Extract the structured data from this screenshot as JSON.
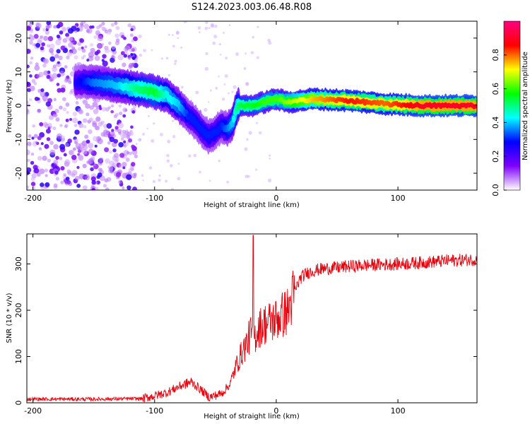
{
  "title": "S124.2023.003.06.48.R08",
  "chart_data": [
    {
      "type": "heatmap",
      "title": "S124.2023.003.06.48.R08",
      "xlabel": "Height of straight line (km)",
      "ylabel": "Frequency (Hz)",
      "xlim": [
        -205,
        165
      ],
      "ylim": [
        -25,
        25
      ],
      "x_ticks": [
        "-200",
        "-100",
        "0",
        "100"
      ],
      "y_ticks": [
        "-20",
        "-10",
        "0",
        "10",
        "20"
      ],
      "colorbar": {
        "label": "Normalized spectral amplitude",
        "range": [
          0,
          1
        ],
        "ticks": [
          "0.0",
          "0.2",
          "0.4",
          "0.6",
          "0.8"
        ],
        "colors": [
          "#ffffff",
          "#7f00ff",
          "#0000ff",
          "#00ffff",
          "#00ff00",
          "#ffff00",
          "#ff0000",
          "#ff0080"
        ]
      },
      "ridge": {
        "x": [
          -165,
          -150,
          -130,
          -115,
          -100,
          -90,
          -80,
          -72,
          -64,
          -56,
          -50,
          -45,
          -40,
          -36,
          -32,
          -28,
          -20,
          -10,
          0,
          10,
          30,
          60,
          90,
          120,
          165
        ],
        "y": [
          7,
          7,
          6,
          5,
          4,
          3,
          0,
          -3,
          -6,
          -9,
          -8,
          -6,
          -7,
          -5,
          0,
          0,
          0,
          1,
          2,
          1,
          2,
          1.5,
          0.5,
          0,
          0
        ],
        "amplitude": [
          0.25,
          0.35,
          0.4,
          0.5,
          0.55,
          0.45,
          0.4,
          0.3,
          0.3,
          0.3,
          0.3,
          0.3,
          0.35,
          0.4,
          0.5,
          0.55,
          0.55,
          0.6,
          0.6,
          0.65,
          0.75,
          0.85,
          0.8,
          0.9,
          0.9
        ]
      },
      "noise_region_x": [
        -205,
        -115
      ]
    },
    {
      "type": "line",
      "xlabel": "Height of straight line (km)",
      "ylabel": "SNR (10 * v/v)",
      "xlim": [
        -205,
        165
      ],
      "ylim": [
        0,
        365
      ],
      "x_ticks": [
        "-200",
        "-100",
        "0",
        "100"
      ],
      "y_ticks": [
        "0",
        "100",
        "200",
        "300"
      ],
      "series": [
        {
          "color": "#e8000b",
          "x": [
            -205,
            -150,
            -110,
            -100,
            -90,
            -80,
            -70,
            -65,
            -55,
            -45,
            -38,
            -33,
            -28,
            -24,
            -21,
            -18,
            -15,
            -10,
            -5,
            0,
            5,
            10,
            15,
            20,
            25,
            30,
            35,
            40,
            50,
            60,
            80,
            100,
            120,
            140,
            165
          ],
          "y": [
            8,
            8,
            9,
            15,
            22,
            35,
            45,
            35,
            12,
            20,
            40,
            80,
            110,
            130,
            150,
            140,
            160,
            170,
            175,
            180,
            190,
            200,
            240,
            270,
            280,
            285,
            288,
            290,
            292,
            295,
            298,
            300,
            303,
            307,
            310
          ]
        }
      ],
      "spike": {
        "x": -19,
        "y": 362
      }
    }
  ]
}
